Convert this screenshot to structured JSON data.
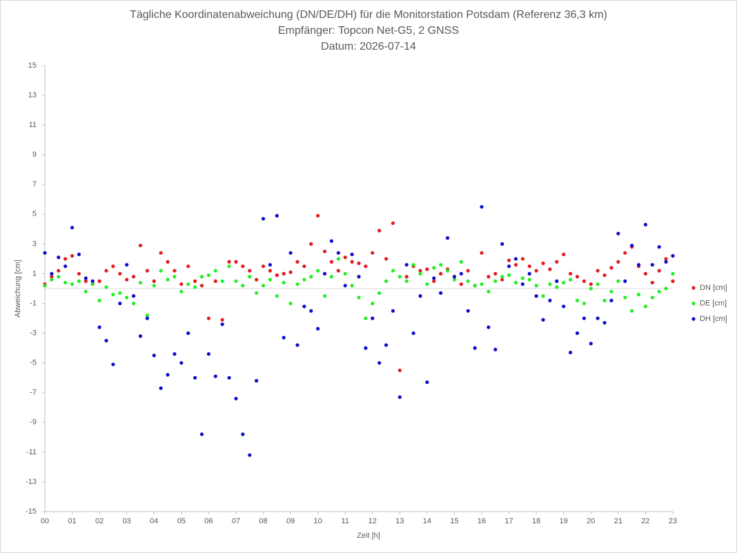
{
  "chart_data": {
    "type": "scatter",
    "title": [
      "Tägliche Koordinatenabweichung (DN/DE/DH) für die Monitorstation Potsdam (Referenz 36,3 km)",
      "Empfänger: Topcon Net-G5, 2 GNSS",
      "Datum: 2026-07-14"
    ],
    "xlabel": "Zeit [h]",
    "ylabel": "Abweichung [cm]",
    "xlim": [
      0,
      23
    ],
    "ylim": [
      -15,
      15
    ],
    "xticks": [
      {
        "value": 0,
        "label": "00"
      },
      {
        "value": 1,
        "label": "01"
      },
      {
        "value": 2,
        "label": "02"
      },
      {
        "value": 3,
        "label": "03"
      },
      {
        "value": 4,
        "label": "04"
      },
      {
        "value": 5,
        "label": "05"
      },
      {
        "value": 6,
        "label": "06"
      },
      {
        "value": 7,
        "label": "07"
      },
      {
        "value": 8,
        "label": "08"
      },
      {
        "value": 9,
        "label": "09"
      },
      10,
      11,
      12,
      13,
      14,
      15,
      16,
      17,
      18,
      19,
      20,
      21,
      22,
      23
    ],
    "yticks": [
      -15,
      -13,
      -11,
      -9,
      -7,
      -5,
      -3,
      -1,
      1,
      3,
      5,
      7,
      9,
      11,
      13,
      15
    ],
    "legend": "right",
    "x": [
      0,
      0.25,
      0.5,
      0.75,
      1,
      1.25,
      1.5,
      1.75,
      2,
      2.25,
      2.5,
      2.75,
      3,
      3.25,
      3.5,
      3.75,
      4,
      4.25,
      4.5,
      4.75,
      5,
      5.25,
      5.5,
      5.75,
      6,
      6.25,
      6.5,
      6.75,
      7,
      7.25,
      7.5,
      7.75,
      8,
      8.25,
      8.5,
      8.75,
      9,
      9.25,
      9.5,
      9.75,
      10,
      10.25,
      10.5,
      10.75,
      11,
      11.25,
      11.5,
      11.75,
      12,
      12.25,
      12.5,
      12.75,
      13,
      13.25,
      13.5,
      13.75,
      14,
      14.25,
      14.5,
      14.75,
      15,
      15.25,
      15.5,
      15.75,
      16,
      16.25,
      16.5,
      16.75,
      17,
      17.25,
      17.5,
      17.75,
      18,
      18.25,
      18.5,
      18.75,
      19,
      19.25,
      19.5,
      19.75,
      20,
      20.25,
      20.5,
      20.75,
      21,
      21.25,
      21.5,
      21.75,
      22,
      22.25,
      22.5,
      22.75,
      23
    ],
    "series": [
      {
        "name": "DN [cm]",
        "color": "#e31a1c",
        "values": [
          0.3,
          0.8,
          1.2,
          2.0,
          2.2,
          1.0,
          0.5,
          0.3,
          0.5,
          1.2,
          1.5,
          1.0,
          0.6,
          0.8,
          2.9,
          1.2,
          0.5,
          2.4,
          1.8,
          1.2,
          0.3,
          1.5,
          0.5,
          0.2,
          -2.0,
          0.5,
          -2.1,
          1.8,
          1.8,
          1.5,
          1.2,
          0.6,
          1.5,
          1.2,
          0.9,
          1.0,
          1.1,
          1.8,
          1.5,
          3.0,
          4.9,
          2.5,
          1.8,
          1.2,
          2.1,
          1.8,
          1.7,
          1.5,
          2.4,
          3.9,
          2.0,
          4.4,
          -5.5,
          0.8,
          1.5,
          1.2,
          1.3,
          0.5,
          1.0,
          1.3,
          0.8,
          0.3,
          1.2,
          0.2,
          2.4,
          0.8,
          1.0,
          0.6,
          1.9,
          1.6,
          2.0,
          1.5,
          1.2,
          1.7,
          1.3,
          1.8,
          2.3,
          1.0,
          0.8,
          0.5,
          0.3,
          1.2,
          0.9,
          1.4,
          1.8,
          2.4,
          2.8,
          1.5,
          1.0,
          0.4,
          1.2,
          2.0,
          0.5
        ]
      },
      {
        "name": "DE [cm]",
        "color": "#22ee22",
        "values": [
          0.2,
          0.6,
          0.8,
          0.4,
          0.3,
          0.5,
          -0.2,
          0.3,
          -0.8,
          0.1,
          -0.4,
          -0.3,
          -0.6,
          -1.0,
          0.4,
          -1.8,
          0.2,
          1.2,
          0.6,
          0.8,
          -0.2,
          0.3,
          0.1,
          0.8,
          0.9,
          1.2,
          0.5,
          1.5,
          0.5,
          0.2,
          0.8,
          -0.3,
          0.2,
          0.6,
          -0.5,
          0.4,
          -1.0,
          0.3,
          0.6,
          0.8,
          1.2,
          -0.5,
          0.8,
          2.0,
          1.0,
          0.2,
          -0.6,
          -2.0,
          -1.0,
          -0.3,
          0.5,
          1.2,
          0.8,
          0.5,
          1.6,
          1.0,
          0.3,
          1.4,
          1.6,
          1.2,
          0.6,
          1.8,
          0.5,
          0.2,
          0.3,
          -0.2,
          0.5,
          0.8,
          0.9,
          0.4,
          0.7,
          0.6,
          0.2,
          -0.5,
          0.3,
          0.1,
          0.4,
          0.6,
          -0.8,
          -1.0,
          0.0,
          0.3,
          -0.8,
          -0.2,
          0.5,
          -0.6,
          -1.5,
          -0.4,
          -1.2,
          -0.6,
          -0.2,
          0.0,
          1.0
        ]
      },
      {
        "name": "DH [cm]",
        "color": "#0b0bcc",
        "values": [
          2.4,
          1.0,
          2.1,
          1.5,
          4.1,
          2.3,
          0.7,
          0.5,
          -2.6,
          -3.5,
          -5.1,
          -1.0,
          1.6,
          -0.5,
          -3.2,
          -2.0,
          -4.5,
          -6.7,
          -5.8,
          -4.4,
          -5.0,
          -3.0,
          -6.0,
          -9.8,
          -4.4,
          -5.9,
          -2.4,
          -6.0,
          -7.4,
          -9.8,
          -11.2,
          -6.2,
          4.7,
          1.6,
          4.9,
          -3.3,
          2.4,
          -3.8,
          -1.2,
          -1.5,
          -2.7,
          1.0,
          3.2,
          2.4,
          0.2,
          2.3,
          0.8,
          -4.0,
          -2.0,
          -5.0,
          -3.8,
          -1.5,
          -7.3,
          1.6,
          -3.0,
          -0.5,
          -6.3,
          0.7,
          -0.3,
          3.4,
          0.8,
          1.0,
          -1.5,
          -4.0,
          5.5,
          -2.6,
          -4.1,
          3.0,
          1.5,
          2.0,
          0.3,
          1.0,
          -0.5,
          -2.1,
          -0.8,
          0.5,
          -1.2,
          -4.3,
          -3.0,
          -2.0,
          -3.7,
          -2.0,
          -2.3,
          -0.8,
          3.7,
          0.5,
          2.9,
          1.6,
          4.3,
          1.6,
          2.8,
          1.8,
          2.2
        ]
      }
    ]
  }
}
